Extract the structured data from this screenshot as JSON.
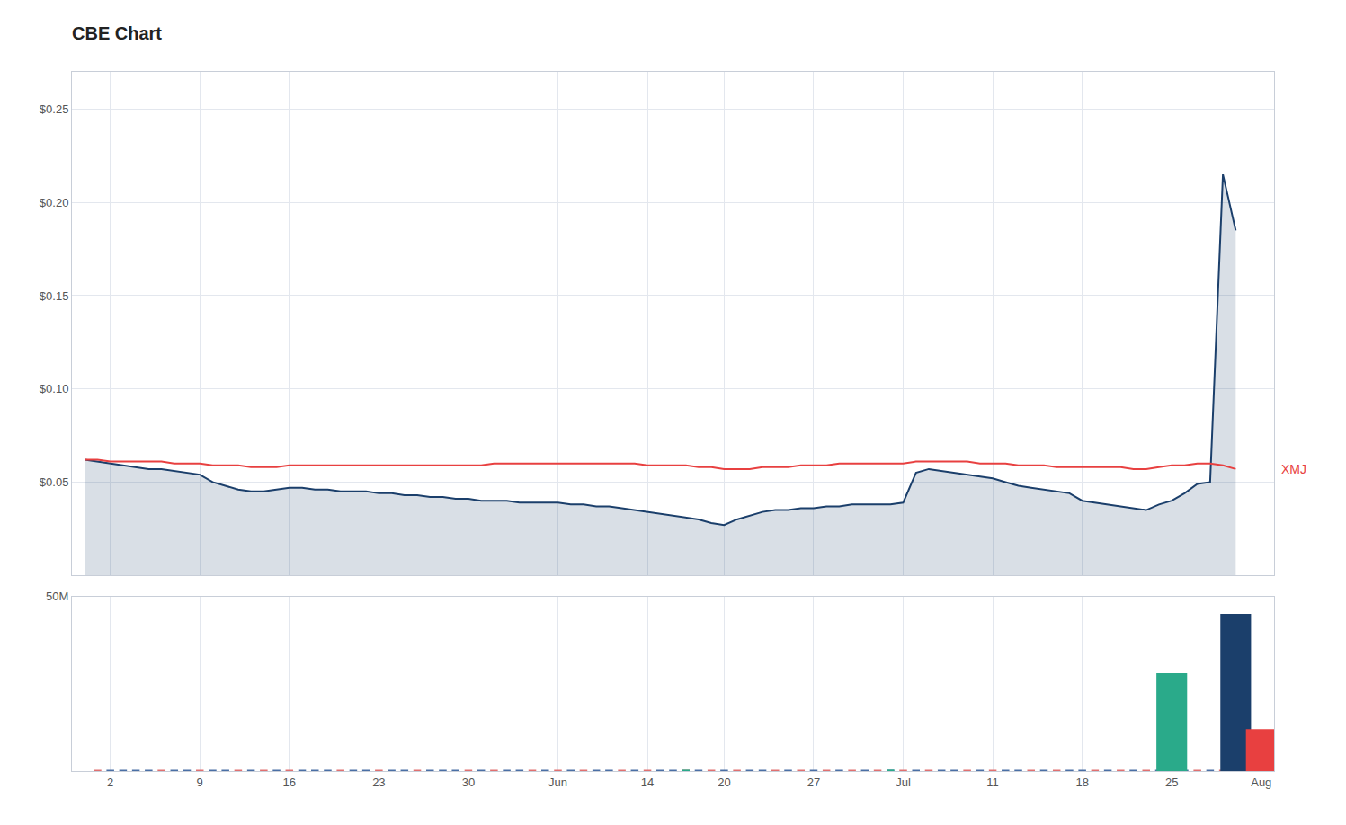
{
  "chart_data": [
    {
      "type": "line",
      "title": "CBE Chart",
      "grid": true,
      "tick_labels": "y",
      "categories": [
        null,
        null,
        "2",
        null,
        null,
        null,
        null,
        null,
        null,
        "9",
        null,
        null,
        null,
        null,
        null,
        null,
        "16",
        null,
        null,
        null,
        null,
        null,
        null,
        "23",
        null,
        null,
        null,
        null,
        null,
        null,
        "30",
        null,
        null,
        null,
        null,
        null,
        null,
        "Jun",
        null,
        null,
        null,
        null,
        null,
        null,
        "14",
        null,
        null,
        null,
        null,
        null,
        "20",
        null,
        null,
        null,
        null,
        null,
        null,
        "27",
        null,
        null,
        null,
        null,
        null,
        null,
        "Jul",
        null,
        null,
        null,
        null,
        null,
        null,
        "11",
        null,
        null,
        null,
        null,
        null,
        null,
        "18",
        null,
        null,
        null,
        null,
        null,
        null,
        "25",
        null,
        null,
        null,
        null,
        null,
        null,
        "Aug"
      ],
      "ylim": [
        0.0,
        0.27
      ],
      "yticks": [
        {
          "value": 0.05,
          "label": "$0.05"
        },
        {
          "value": 0.1,
          "label": "$0.10"
        },
        {
          "value": 0.15,
          "label": "$0.15"
        },
        {
          "value": 0.2,
          "label": "$0.20"
        },
        {
          "value": 0.25,
          "label": "$0.25"
        }
      ],
      "series": [
        {
          "type": "area",
          "color": "#1b3f6b",
          "values": [
            0.062,
            0.061,
            0.06,
            0.059,
            0.058,
            0.057,
            0.057,
            0.056,
            0.055,
            0.054,
            0.05,
            0.048,
            0.046,
            0.045,
            0.045,
            0.046,
            0.047,
            0.047,
            0.046,
            0.046,
            0.045,
            0.045,
            0.045,
            0.044,
            0.044,
            0.043,
            0.043,
            0.042,
            0.042,
            0.041,
            0.041,
            0.04,
            0.04,
            0.04,
            0.039,
            0.039,
            0.039,
            0.039,
            0.038,
            0.038,
            0.037,
            0.037,
            0.036,
            0.035,
            0.034,
            0.033,
            0.032,
            0.031,
            0.03,
            0.028,
            0.027,
            0.03,
            0.032,
            0.034,
            0.035,
            0.035,
            0.036,
            0.036,
            0.037,
            0.037,
            0.038,
            0.038,
            0.038,
            0.038,
            0.039,
            0.055,
            0.057,
            0.056,
            0.055,
            0.054,
            0.053,
            0.052,
            0.05,
            0.048,
            0.047,
            0.046,
            0.045,
            0.044,
            0.04,
            0.039,
            0.038,
            0.037,
            0.036,
            0.035,
            0.038,
            0.04,
            0.044,
            0.049,
            0.05,
            0.215,
            0.185,
            null,
            null
          ]
        },
        {
          "type": "line",
          "color": "#e84040",
          "values": [
            0.062,
            0.062,
            0.061,
            0.061,
            0.061,
            0.061,
            0.061,
            0.06,
            0.06,
            0.06,
            0.059,
            0.059,
            0.059,
            0.058,
            0.058,
            0.058,
            0.059,
            0.059,
            0.059,
            0.059,
            0.059,
            0.059,
            0.059,
            0.059,
            0.059,
            0.059,
            0.059,
            0.059,
            0.059,
            0.059,
            0.059,
            0.059,
            0.06,
            0.06,
            0.06,
            0.06,
            0.06,
            0.06,
            0.06,
            0.06,
            0.06,
            0.06,
            0.06,
            0.06,
            0.059,
            0.059,
            0.059,
            0.059,
            0.058,
            0.058,
            0.057,
            0.057,
            0.057,
            0.058,
            0.058,
            0.058,
            0.059,
            0.059,
            0.059,
            0.06,
            0.06,
            0.06,
            0.06,
            0.06,
            0.06,
            0.061,
            0.061,
            0.061,
            0.061,
            0.061,
            0.06,
            0.06,
            0.06,
            0.059,
            0.059,
            0.059,
            0.058,
            0.058,
            0.058,
            0.058,
            0.058,
            0.058,
            0.057,
            0.057,
            0.058,
            0.059,
            0.059,
            0.06,
            0.06,
            0.059,
            0.057,
            null,
            null
          ]
        }
      ],
      "annotations": [
        {
          "text": "XMJ",
          "y": 0.057,
          "color": "#e84040"
        }
      ]
    },
    {
      "type": "bar",
      "grid": true,
      "stacked": false,
      "categories": [
        null,
        null,
        "2",
        null,
        null,
        null,
        null,
        null,
        null,
        "9",
        null,
        null,
        null,
        null,
        null,
        null,
        "16",
        null,
        null,
        null,
        null,
        null,
        null,
        "23",
        null,
        null,
        null,
        null,
        null,
        null,
        "30",
        null,
        null,
        null,
        null,
        null,
        null,
        "Jun",
        null,
        null,
        null,
        null,
        null,
        null,
        "14",
        null,
        null,
        null,
        null,
        null,
        "20",
        null,
        null,
        null,
        null,
        null,
        null,
        "27",
        null,
        null,
        null,
        null,
        null,
        null,
        "Jul",
        null,
        null,
        null,
        null,
        null,
        null,
        "11",
        null,
        null,
        null,
        null,
        null,
        null,
        "18",
        null,
        null,
        null,
        null,
        null,
        null,
        "25",
        null,
        null,
        null,
        null,
        null,
        null,
        "Aug"
      ],
      "ylim": [
        0,
        50000000
      ],
      "yticks": [
        {
          "value": 50000000,
          "label": "50M"
        }
      ],
      "series": [
        {
          "color": "#4a6fa5",
          "values": [
            null,
            null,
            350000,
            350000,
            350000,
            350000,
            null,
            350000,
            350000,
            null,
            350000,
            350000,
            null,
            350000,
            null,
            350000,
            null,
            350000,
            350000,
            350000,
            null,
            350000,
            350000,
            null,
            350000,
            350000,
            null,
            350000,
            350000,
            350000,
            null,
            350000,
            null,
            350000,
            350000,
            null,
            350000,
            null,
            350000,
            null,
            350000,
            350000,
            null,
            350000,
            null,
            350000,
            350000,
            null,
            350000,
            null,
            350000,
            null,
            350000,
            350000,
            null,
            350000,
            null,
            350000,
            null,
            350000,
            null,
            350000,
            null,
            350000,
            null,
            350000,
            null,
            350000,
            350000,
            null,
            350000,
            null,
            350000,
            350000,
            null,
            350000,
            null,
            350000,
            350000,
            null,
            350000,
            null,
            350000,
            null,
            350000,
            null,
            350000,
            null,
            350000,
            null,
            null,
            null,
            null
          ]
        },
        {
          "color": "#e07070",
          "values": [
            null,
            297500,
            null,
            null,
            null,
            null,
            297500,
            null,
            null,
            297500,
            null,
            null,
            297500,
            null,
            297500,
            null,
            297500,
            null,
            null,
            null,
            297500,
            null,
            null,
            297500,
            null,
            null,
            297500,
            null,
            null,
            null,
            297500,
            null,
            297500,
            null,
            null,
            297500,
            null,
            297500,
            null,
            297500,
            null,
            null,
            297500,
            null,
            297500,
            null,
            null,
            297500,
            null,
            297500,
            null,
            297500,
            null,
            null,
            297500,
            null,
            297500,
            null,
            297500,
            null,
            297500,
            null,
            297500,
            null,
            297500,
            null,
            297500,
            null,
            null,
            297500,
            null,
            297500,
            null,
            null,
            297500,
            null,
            297500,
            null,
            null,
            297500,
            null,
            297500,
            null,
            297500,
            null,
            297500,
            null,
            297500,
            null,
            297500,
            null,
            null,
            null
          ]
        },
        {
          "color": "#2aaa8a",
          "values": [
            null,
            null,
            null,
            null,
            null,
            null,
            null,
            null,
            null,
            null,
            null,
            null,
            null,
            null,
            null,
            null,
            null,
            null,
            null,
            null,
            null,
            null,
            null,
            null,
            null,
            null,
            null,
            null,
            null,
            null,
            null,
            null,
            null,
            null,
            null,
            null,
            null,
            null,
            null,
            null,
            null,
            null,
            null,
            null,
            null,
            null,
            null,
            420000,
            null,
            null,
            null,
            null,
            null,
            null,
            null,
            null,
            null,
            null,
            null,
            null,
            null,
            null,
            null,
            420000,
            null,
            null,
            null,
            null,
            null,
            null,
            null,
            null,
            null,
            null,
            null,
            null,
            null,
            null,
            null,
            null,
            null,
            null,
            null,
            null,
            null,
            null,
            null,
            null,
            null,
            null,
            null,
            null,
            null
          ]
        },
        {
          "color": "#2aaa8a",
          "values": [
            null,
            null,
            null,
            null,
            null,
            null,
            null,
            null,
            null,
            null,
            null,
            null,
            null,
            null,
            null,
            null,
            null,
            null,
            null,
            null,
            null,
            null,
            null,
            null,
            null,
            null,
            null,
            null,
            null,
            null,
            null,
            null,
            null,
            null,
            null,
            null,
            null,
            null,
            null,
            null,
            null,
            null,
            null,
            null,
            null,
            null,
            null,
            null,
            null,
            null,
            null,
            null,
            null,
            null,
            null,
            null,
            null,
            null,
            null,
            null,
            null,
            null,
            null,
            null,
            null,
            null,
            null,
            null,
            null,
            null,
            null,
            null,
            null,
            null,
            null,
            null,
            null,
            null,
            null,
            null,
            null,
            null,
            null,
            null,
            null,
            28000000,
            null,
            null,
            null,
            null,
            null,
            null,
            null
          ]
        },
        {
          "color": "#1b3f6b",
          "values": [
            null,
            null,
            null,
            null,
            null,
            null,
            null,
            null,
            null,
            null,
            null,
            null,
            null,
            null,
            null,
            null,
            null,
            null,
            null,
            null,
            null,
            null,
            null,
            null,
            null,
            null,
            null,
            null,
            null,
            null,
            null,
            null,
            null,
            null,
            null,
            null,
            null,
            null,
            null,
            null,
            null,
            null,
            null,
            null,
            null,
            null,
            null,
            null,
            null,
            null,
            null,
            null,
            null,
            null,
            null,
            null,
            null,
            null,
            null,
            null,
            null,
            null,
            null,
            null,
            null,
            null,
            null,
            null,
            null,
            null,
            null,
            null,
            null,
            null,
            null,
            null,
            null,
            null,
            null,
            null,
            null,
            null,
            null,
            null,
            null,
            null,
            null,
            null,
            null,
            null,
            45000000,
            null,
            null
          ]
        },
        {
          "color": "#e84040",
          "values": [
            null,
            null,
            null,
            null,
            null,
            null,
            null,
            null,
            null,
            null,
            null,
            null,
            null,
            null,
            null,
            null,
            null,
            null,
            null,
            null,
            null,
            null,
            null,
            null,
            null,
            null,
            null,
            null,
            null,
            null,
            null,
            null,
            null,
            null,
            null,
            null,
            null,
            null,
            null,
            null,
            null,
            null,
            null,
            null,
            null,
            null,
            null,
            null,
            null,
            null,
            null,
            null,
            null,
            null,
            null,
            null,
            null,
            null,
            null,
            null,
            null,
            null,
            null,
            null,
            null,
            null,
            null,
            null,
            null,
            null,
            null,
            null,
            null,
            null,
            null,
            null,
            null,
            null,
            null,
            null,
            null,
            null,
            null,
            null,
            null,
            null,
            null,
            null,
            null,
            null,
            null,
            null,
            12000000
          ]
        }
      ]
    }
  ]
}
